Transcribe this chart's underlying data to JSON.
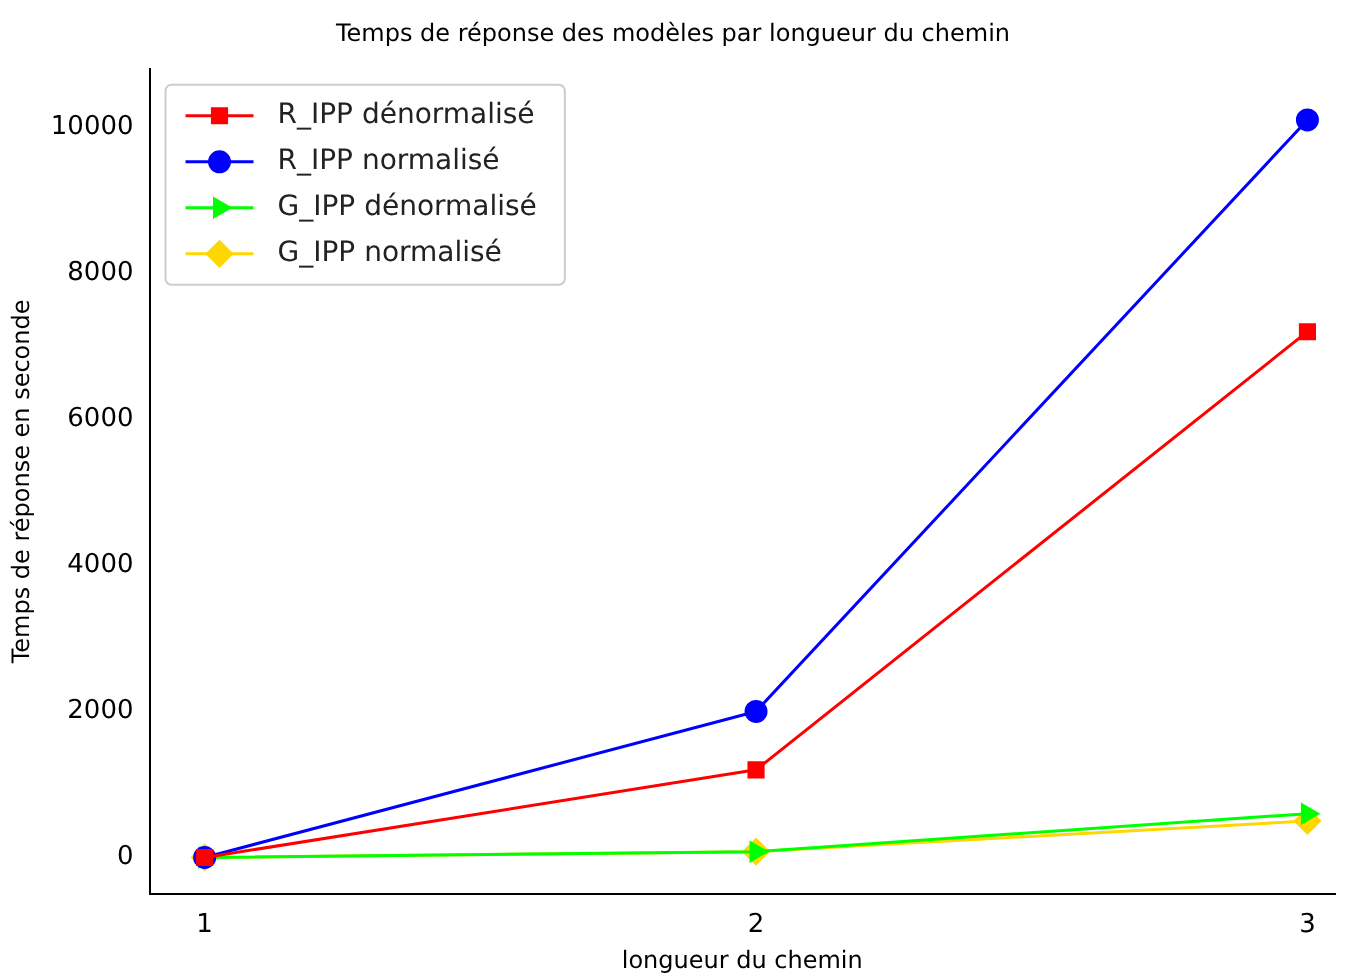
{
  "chart_data": {
    "type": "line",
    "title": "Temps de réponse des modèles par longueur du chemin",
    "xlabel": "longueur du chemin",
    "ylabel": "Temps de réponse en seconde",
    "x": [
      1,
      2,
      3
    ],
    "xlim": [
      0.9,
      3.05
    ],
    "xticks": [
      1,
      2,
      3
    ],
    "ylim": [
      -500,
      10800
    ],
    "yticks": [
      0,
      2000,
      4000,
      6000,
      8000,
      10000
    ],
    "grid": false,
    "legend": "top left",
    "series": [
      {
        "name": "R_IPP dénormalisé",
        "color": "#ff0000",
        "marker": "square",
        "values": [
          0,
          1200,
          7200
        ]
      },
      {
        "name": "R_IPP normalisé",
        "color": "#0000ff",
        "marker": "circle",
        "values": [
          0,
          2000,
          10100
        ]
      },
      {
        "name": "G_IPP dénormalisé",
        "color": "#00ff00",
        "marker": "triangle",
        "values": [
          0,
          80,
          600
        ]
      },
      {
        "name": "G_IPP normalisé",
        "color": "#ffd700",
        "marker": "diamond",
        "values": [
          0,
          80,
          500
        ]
      }
    ]
  }
}
